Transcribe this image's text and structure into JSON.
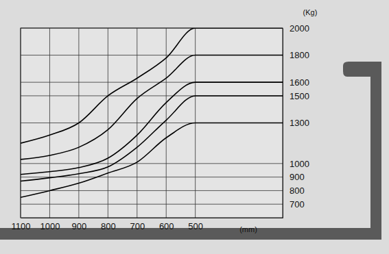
{
  "chart_data": {
    "type": "line",
    "x_label": "(mm)",
    "y_label": "(Kg)",
    "xlim": [
      1100,
      200
    ],
    "xticks": [
      1100,
      1000,
      900,
      800,
      700,
      600,
      500
    ],
    "ylim": [
      600,
      2000
    ],
    "yticks": [
      700,
      800,
      900,
      1000,
      1300,
      1500,
      1600,
      1800,
      2000
    ],
    "grid": true,
    "x": [
      1100,
      1000,
      900,
      800,
      700,
      600,
      500,
      200
    ],
    "series": [
      {
        "color": "#000000",
        "values": [
          1150,
          1210,
          1300,
          1500,
          1630,
          1780,
          2000,
          2000
        ]
      },
      {
        "color": "#000000",
        "values": [
          1030,
          1060,
          1120,
          1250,
          1480,
          1630,
          1800,
          1800
        ]
      },
      {
        "color": "#000000",
        "values": [
          920,
          940,
          970,
          1040,
          1210,
          1450,
          1600,
          1600
        ]
      },
      {
        "color": "#000000",
        "values": [
          870,
          895,
          925,
          975,
          1120,
          1320,
          1500,
          1500
        ]
      },
      {
        "color": "#000000",
        "values": [
          750,
          800,
          855,
          930,
          1010,
          1190,
          1300,
          1300
        ]
      }
    ]
  }
}
